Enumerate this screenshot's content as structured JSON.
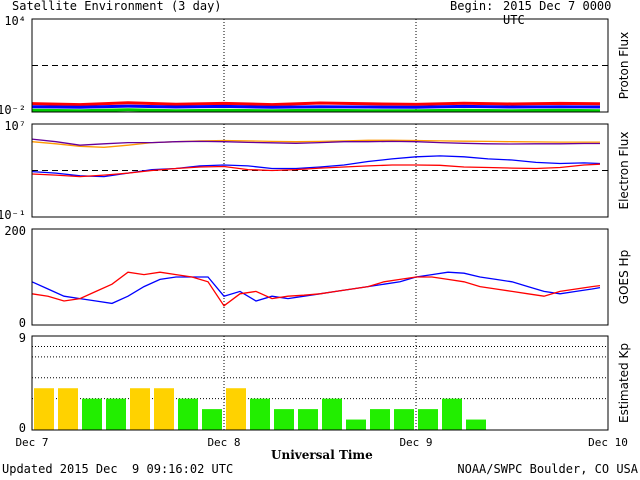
{
  "header": {
    "title": "Satellite Environment (3 day)",
    "begin_label": "Begin:",
    "begin_value": "2015 Dec 7 0000 UTC"
  },
  "footer": {
    "updated": "Updated 2015 Dec  9 09:16:02 UTC",
    "credit": "NOAA/SWPC Boulder, CO USA"
  },
  "chart_data": [
    {
      "type": "line",
      "panel": "proton",
      "ylabel": "Proton Flux",
      "yscale": "log",
      "ylim": [
        0.01,
        10000
      ],
      "tick_labels": [
        "10⁴",
        "10⁻²"
      ],
      "threshold": 10,
      "x": [
        0,
        6,
        12,
        18,
        24,
        30,
        36,
        42,
        48,
        54,
        60,
        66,
        71
      ],
      "series": [
        {
          "color": "#ff0000",
          "values": [
            0.035,
            0.03,
            0.04,
            0.032,
            0.036,
            0.03,
            0.038,
            0.034,
            0.031,
            0.037,
            0.033,
            0.036,
            0.034
          ]
        },
        {
          "color": "#0000ff",
          "values": [
            0.022,
            0.02,
            0.024,
            0.021,
            0.023,
            0.02,
            0.022,
            0.021,
            0.02,
            0.023,
            0.021,
            0.022,
            0.021
          ]
        },
        {
          "color": "#00cc00",
          "values": [
            0.013,
            0.012,
            0.014,
            0.012,
            0.013,
            0.012,
            0.013,
            0.012,
            0.012,
            0.013,
            0.012,
            0.013,
            0.012
          ]
        }
      ]
    },
    {
      "type": "line",
      "panel": "electron",
      "ylabel": "Electron Flux",
      "yscale": "log",
      "ylim": [
        0.1,
        10000000
      ],
      "tick_labels": [
        "10⁷",
        "10⁻¹"
      ],
      "threshold": 1000,
      "x": [
        0,
        3,
        6,
        9,
        12,
        15,
        18,
        21,
        24,
        27,
        30,
        33,
        36,
        39,
        42,
        45,
        48,
        51,
        54,
        57,
        60,
        63,
        66,
        69,
        71
      ],
      "series": [
        {
          "color": "#ff9900",
          "values": [
            300000,
            200000,
            120000,
            100000,
            150000,
            250000,
            300000,
            350000,
            380000,
            350000,
            320000,
            300000,
            320000,
            350000,
            400000,
            400000,
            380000,
            350000,
            330000,
            320000,
            300000,
            290000,
            280000,
            280000,
            280000
          ]
        },
        {
          "color": "#660099",
          "values": [
            500000,
            300000,
            150000,
            200000,
            250000,
            250000,
            300000,
            320000,
            300000,
            260000,
            240000,
            220000,
            250000,
            300000,
            300000,
            320000,
            300000,
            250000,
            220000,
            200000,
            190000,
            200000,
            200000,
            210000,
            210000
          ]
        },
        {
          "color": "#0000ff",
          "values": [
            800,
            600,
            350,
            300,
            600,
            1200,
            1500,
            2500,
            3000,
            2500,
            1500,
            1500,
            2000,
            3000,
            6000,
            10000,
            15000,
            18000,
            15000,
            10000,
            8000,
            5000,
            4000,
            4500,
            4000
          ]
        },
        {
          "color": "#ff0000",
          "values": [
            500,
            400,
            300,
            400,
            600,
            1000,
            1500,
            2000,
            2200,
            1200,
            1000,
            1200,
            1600,
            2000,
            2500,
            3000,
            3000,
            2800,
            2000,
            1800,
            1600,
            1500,
            1800,
            3000,
            3500
          ]
        }
      ]
    },
    {
      "type": "line",
      "panel": "goes_hp",
      "ylabel": "GOES Hp",
      "ylim": [
        0,
        200
      ],
      "tick_labels": [
        "200",
        "0"
      ],
      "x": [
        0,
        2,
        4,
        6,
        8,
        10,
        12,
        14,
        16,
        18,
        20,
        22,
        24,
        26,
        28,
        30,
        32,
        34,
        36,
        38,
        40,
        42,
        44,
        46,
        48,
        50,
        52,
        54,
        56,
        58,
        60,
        62,
        64,
        66,
        68,
        70,
        71
      ],
      "series": [
        {
          "color": "#0000ff",
          "values": [
            90,
            75,
            60,
            55,
            50,
            45,
            60,
            80,
            95,
            100,
            100,
            100,
            60,
            70,
            50,
            60,
            55,
            60,
            65,
            70,
            75,
            80,
            85,
            90,
            100,
            105,
            110,
            108,
            100,
            95,
            90,
            80,
            70,
            65,
            70,
            75,
            78
          ]
        },
        {
          "color": "#ff0000",
          "values": [
            65,
            60,
            50,
            55,
            70,
            85,
            110,
            105,
            110,
            105,
            100,
            90,
            40,
            65,
            70,
            55,
            60,
            62,
            65,
            70,
            75,
            80,
            90,
            95,
            100,
            100,
            95,
            90,
            80,
            75,
            70,
            65,
            60,
            70,
            75,
            80,
            82
          ]
        }
      ]
    },
    {
      "type": "bar",
      "panel": "kp",
      "ylabel": "Estimated Kp",
      "ylim": [
        0,
        9
      ],
      "tick_labels": [
        "9",
        "0"
      ],
      "bar_width_hours": 3,
      "x": [
        0,
        3,
        6,
        9,
        12,
        15,
        18,
        21,
        24,
        27,
        30,
        33,
        36,
        39,
        42,
        45,
        48,
        51,
        54,
        57
      ],
      "values": [
        4,
        4,
        3,
        3,
        4,
        4,
        3,
        2,
        4,
        3,
        2,
        2,
        3,
        1,
        2,
        2,
        2,
        3,
        1,
        0
      ],
      "colors": {
        "storm": "#ffd200",
        "quiet": "#22ee00"
      },
      "storm_threshold": 4
    }
  ],
  "xaxis": {
    "label": "Universal Time",
    "range_hours": [
      0,
      72
    ],
    "ticks": [
      "Dec 7",
      "Dec 8",
      "Dec 9",
      "Dec 10"
    ],
    "tick_hours": [
      0,
      24,
      48,
      72
    ]
  }
}
